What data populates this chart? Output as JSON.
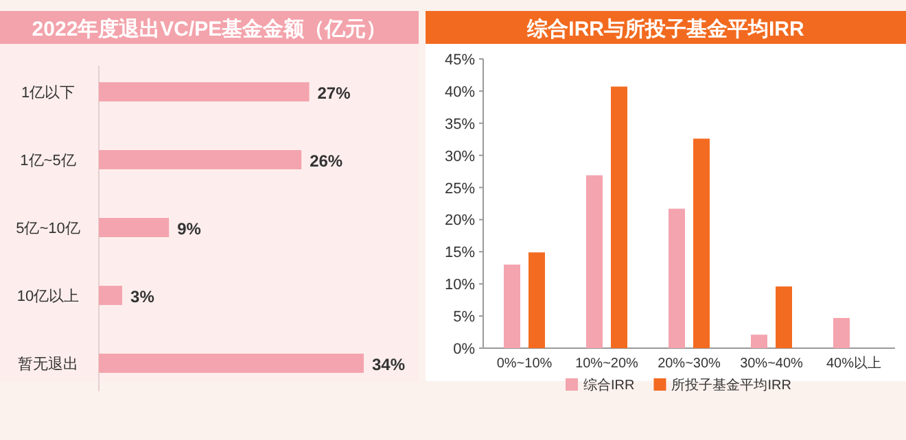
{
  "chart_data": [
    {
      "type": "bar",
      "orientation": "horizontal",
      "title": "2022年度退出VC/PE基金金额（亿元）",
      "categories": [
        "1亿以下",
        "1亿~5亿",
        "5亿~10亿",
        "10亿以上",
        "暂无退出"
      ],
      "values": [
        27,
        26,
        9,
        3,
        34
      ],
      "value_labels": [
        "27%",
        "26%",
        "9%",
        "3%",
        "34%"
      ],
      "color": "#f4a4ae"
    },
    {
      "type": "bar",
      "title": "综合IRR与所投子基金平均IRR",
      "categories": [
        "0%~10%",
        "10%~20%",
        "20%~30%",
        "30%~40%",
        "40%以上"
      ],
      "series": [
        {
          "name": "综合IRR",
          "color": "#f4a4ae",
          "values": [
            13,
            26.9,
            21.7,
            2.1,
            4.7
          ]
        },
        {
          "name": "所投子基金平均IRR",
          "color": "#f36b21",
          "values": [
            14.9,
            40.7,
            32.6,
            9.6,
            null
          ]
        }
      ],
      "ylim": [
        0,
        45
      ],
      "yticks": [
        {
          "value": 0,
          "label": "0%"
        },
        {
          "value": 5,
          "label": "5%"
        },
        {
          "value": 10,
          "label": "10%"
        },
        {
          "value": 15,
          "label": "15%"
        },
        {
          "value": 20,
          "label": "20%"
        },
        {
          "value": 25,
          "label": "25%"
        },
        {
          "value": 30,
          "label": "30%"
        },
        {
          "value": 35,
          "label": "35%"
        },
        {
          "value": 40,
          "label": "40%"
        },
        {
          "value": 45,
          "label": "45%"
        }
      ],
      "legend": "bottom"
    }
  ]
}
